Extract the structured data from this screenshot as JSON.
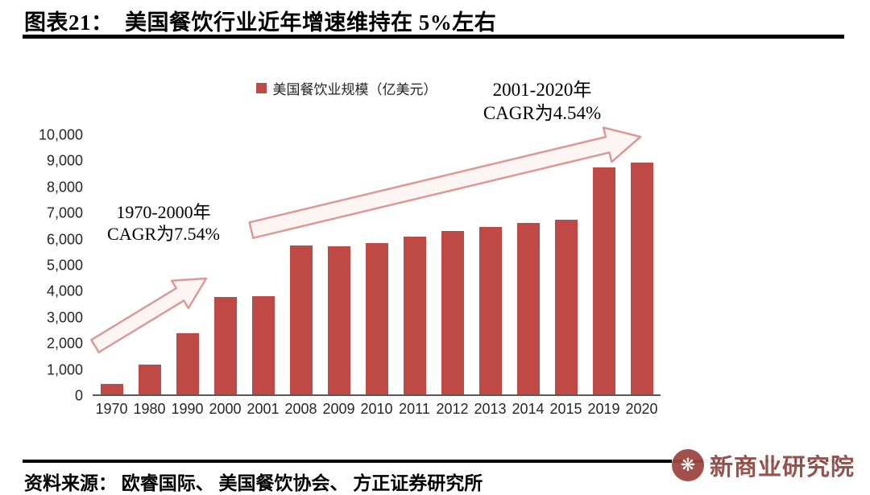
{
  "header": {
    "title": "图表21：  美国餐饮行业近年增速维持在 5%左右"
  },
  "chart_data": {
    "type": "bar",
    "title": "美国餐饮行业近年增速维持在 5%左右",
    "legend": "美国餐饮业规模（亿美元）",
    "legend_position": "top-center",
    "categories": [
      "1970",
      "1980",
      "1990",
      "2000",
      "2001",
      "2008",
      "2009",
      "2010",
      "2011",
      "2012",
      "2013",
      "2014",
      "2015",
      "2019",
      "2020"
    ],
    "values": [
      400,
      1150,
      2350,
      3750,
      3800,
      5750,
      5700,
      5850,
      6100,
      6300,
      6450,
      6600,
      6750,
      8750,
      8950
    ],
    "xlabel": "",
    "ylabel": "",
    "ylim": [
      0,
      10000
    ],
    "ytick_step": 1000,
    "grid": false,
    "bar_color": "#bf4a45",
    "arrow_color": "#db9a96",
    "annotations": [
      {
        "lines": [
          "1970-2000年",
          "CAGR为7.54%"
        ],
        "position": "left-middle"
      },
      {
        "lines": [
          "2001-2020年",
          "CAGR为4.54%"
        ],
        "position": "top-right"
      }
    ]
  },
  "footer": {
    "source": "资料来源： 欧睿国际、 美国餐饮协会、 方正证券研究所"
  },
  "watermark": {
    "text": "新商业研究院",
    "icon": "flower-swirl-icon",
    "color": "#8f4b46"
  }
}
